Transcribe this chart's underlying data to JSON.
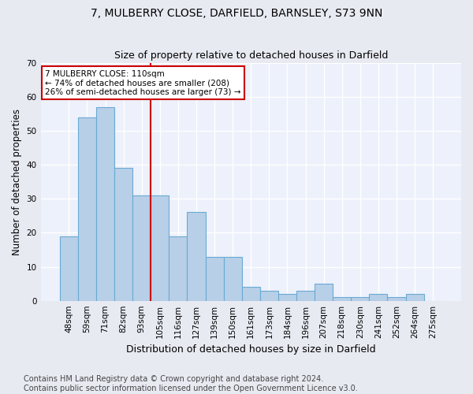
{
  "title": "7, MULBERRY CLOSE, DARFIELD, BARNSLEY, S73 9NN",
  "subtitle": "Size of property relative to detached houses in Darfield",
  "xlabel": "Distribution of detached houses by size in Darfield",
  "ylabel": "Number of detached properties",
  "footer_line1": "Contains HM Land Registry data © Crown copyright and database right 2024.",
  "footer_line2": "Contains public sector information licensed under the Open Government Licence v3.0.",
  "categories": [
    "48sqm",
    "59sqm",
    "71sqm",
    "82sqm",
    "93sqm",
    "105sqm",
    "116sqm",
    "127sqm",
    "139sqm",
    "150sqm",
    "161sqm",
    "173sqm",
    "184sqm",
    "196sqm",
    "207sqm",
    "218sqm",
    "230sqm",
    "241sqm",
    "252sqm",
    "264sqm",
    "275sqm"
  ],
  "values": [
    19,
    54,
    57,
    39,
    31,
    31,
    19,
    26,
    13,
    13,
    4,
    3,
    2,
    3,
    5,
    1,
    1,
    2,
    1,
    2,
    0
  ],
  "bar_color": "#b8cfe8",
  "bar_edge_color": "#6aaad4",
  "annotation_text": "7 MULBERRY CLOSE: 110sqm\n← 74% of detached houses are smaller (208)\n26% of semi-detached houses are larger (73) →",
  "annotation_box_color": "#ffffff",
  "annotation_box_edgecolor": "#cc0000",
  "ylim": [
    0,
    70
  ],
  "yticks": [
    0,
    10,
    20,
    30,
    40,
    50,
    60,
    70
  ],
  "bg_color": "#e8eaf2",
  "plot_bg_color": "#edf1fb",
  "grid_color": "#ffffff",
  "title_fontsize": 10,
  "axis_label_fontsize": 8.5,
  "tick_fontsize": 7.5,
  "footer_fontsize": 7,
  "vertical_line_x": 5,
  "vertical_line_color": "#cc0000"
}
